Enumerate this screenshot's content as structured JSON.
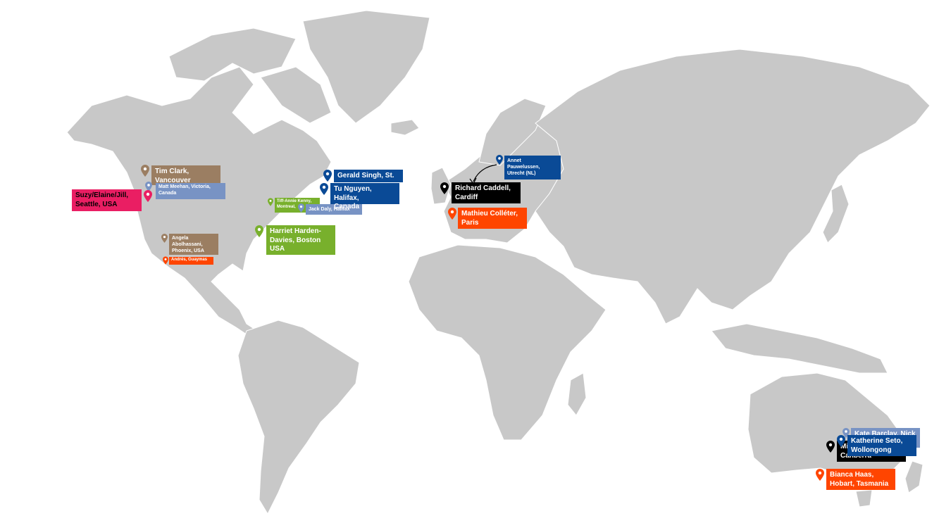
{
  "colors": {
    "land": "#c8c8c8",
    "brown": "#9b7e62",
    "steel": "#7893c4",
    "navy": "#0a4a96",
    "pink": "#ea1e63",
    "green": "#78b02c",
    "orange": "#ff4500",
    "black": "#000000"
  },
  "locations": {
    "tim": {
      "text": "Tim Clark,\nVancouver",
      "color": "brown"
    },
    "matt": {
      "text": "Matt Meehan, Victoria,\nCanada",
      "color": "steel"
    },
    "suzy": {
      "text": "Suzy/Elaine/Jill,\nSeattle, USA",
      "color": "pink"
    },
    "angela": {
      "text": "Angela\nAbolhassani,\nPhoenix, USA",
      "color": "brown"
    },
    "andres": {
      "text": "Andrés, Guaymas",
      "color": "orange"
    },
    "tiff": {
      "text": "Tiff-Annie Kenny,\nMontreal,",
      "color": "green"
    },
    "jack": {
      "text": "Jack Daly, Halifax",
      "color": "steel"
    },
    "harriet": {
      "text": "Harriet Harden-\nDavies, Boston\nUSA",
      "color": "green"
    },
    "gerald": {
      "text": "Gerald Singh, St.",
      "color": "navy"
    },
    "tu": {
      "text": "Tu Nguyen, Halifax,\nCanada",
      "color": "navy"
    },
    "annet": {
      "text": "Annet\nPauwelussen,\nUtrecht (NL)",
      "color": "navy"
    },
    "richard": {
      "text": "Richard Caddell,\nCardiff",
      "color": "black"
    },
    "mathieu": {
      "text": "Mathieu Colléter,\nParis",
      "color": "orange"
    },
    "kate": {
      "text": "Kate Barclay, Nick",
      "color": "steel"
    },
    "mi": {
      "text": "Mi\nCanberra",
      "color": "black"
    },
    "katherine": {
      "text": "Katherine Seto,\nWollongong",
      "color": "navy"
    },
    "bianca": {
      "text": "Bianca Haas,\nHobart, Tasmania",
      "color": "orange"
    }
  }
}
